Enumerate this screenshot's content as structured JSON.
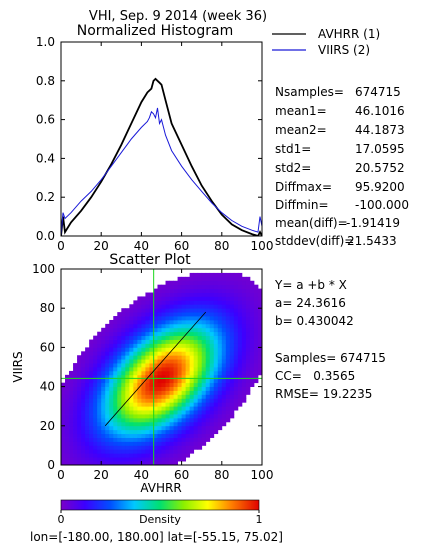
{
  "title": "VHI,  Sep. 9 2014 (week 36)",
  "colors": {
    "series1": "#000000",
    "series2": "#1a1ad8",
    "fit_line": "#000000",
    "mean_line": "#1ad81a"
  },
  "stats": {
    "rows": [
      {
        "label": "Nsamples=",
        "value": "674715"
      },
      {
        "label": "mean1=",
        "value": "46.1016"
      },
      {
        "label": "mean2=",
        "value": "44.1873"
      },
      {
        "label": "std1=",
        "value": "17.0595"
      },
      {
        "label": "std2=",
        "value": "20.5752"
      },
      {
        "label": "Diffmax=",
        "value": "95.9200"
      },
      {
        "label": "Diffmin=",
        "value": "-100.000"
      },
      {
        "label": "mean(diff)=",
        "value": "-1.91419"
      },
      {
        "label": "stddev(diff)=",
        "value": "21.5433"
      }
    ]
  },
  "regression": {
    "equation": "Y= a +b * X",
    "a": "a= 24.3616",
    "b": "b= 0.430042",
    "samples": "Samples= 674715",
    "cc": "CC=   0.3565",
    "rmse": "RMSE= 19.2235"
  },
  "colorbar": {
    "min_label": "0",
    "max_label": "1",
    "title": "Density"
  },
  "footer": "lon=[-180.00, 180.00]  lat=[-55.15, 75.02]",
  "chart_data": [
    {
      "type": "line",
      "title": "Normalized Histogram",
      "xlim": [
        0,
        100
      ],
      "ylim": [
        0,
        1.0
      ],
      "x_ticks": [
        0,
        20,
        40,
        60,
        80,
        100
      ],
      "y_ticks": [
        0.0,
        0.2,
        0.4,
        0.6,
        0.8,
        1.0
      ],
      "y_tick_labels": [
        "0.0",
        "0.2",
        "0.4",
        "0.6",
        "0.8",
        "1.0"
      ],
      "series": [
        {
          "name": "AVHRR (1)",
          "color": "#000000",
          "x": [
            0,
            1,
            2,
            5,
            10,
            15,
            20,
            25,
            30,
            35,
            40,
            43,
            45,
            46,
            47,
            48,
            49,
            50,
            52,
            55,
            60,
            65,
            70,
            75,
            80,
            85,
            90,
            95,
            98,
            99,
            100
          ],
          "y": [
            0.0,
            0.1,
            0.02,
            0.07,
            0.13,
            0.2,
            0.28,
            0.37,
            0.47,
            0.58,
            0.69,
            0.74,
            0.76,
            0.8,
            0.81,
            0.8,
            0.79,
            0.78,
            0.7,
            0.58,
            0.47,
            0.36,
            0.26,
            0.18,
            0.11,
            0.06,
            0.03,
            0.01,
            0.0,
            0.02,
            0.0
          ]
        },
        {
          "name": "VIIRS (2)",
          "color": "#1a1ad8",
          "x": [
            0,
            1,
            2,
            5,
            10,
            15,
            20,
            25,
            30,
            35,
            40,
            43,
            44,
            45,
            46,
            47,
            48,
            49,
            50,
            52,
            55,
            60,
            65,
            70,
            75,
            80,
            85,
            90,
            95,
            98,
            99,
            100
          ],
          "y": [
            0.0,
            0.12,
            0.09,
            0.12,
            0.18,
            0.23,
            0.29,
            0.36,
            0.43,
            0.5,
            0.56,
            0.59,
            0.61,
            0.64,
            0.63,
            0.61,
            0.66,
            0.58,
            0.6,
            0.52,
            0.44,
            0.36,
            0.29,
            0.23,
            0.17,
            0.12,
            0.08,
            0.05,
            0.03,
            0.02,
            0.1,
            0.05
          ]
        }
      ]
    },
    {
      "type": "heatmap",
      "title": "Scatter Plot",
      "xlabel": "AVHRR",
      "ylabel": "VIIRS",
      "xlim": [
        0,
        100
      ],
      "ylim": [
        0,
        100
      ],
      "x_ticks": [
        0,
        20,
        40,
        60,
        80,
        100
      ],
      "y_ticks": [
        0,
        20,
        40,
        60,
        80,
        100
      ],
      "density_center": [
        50,
        44
      ],
      "mean_x": 46.1016,
      "mean_y": 44.1873,
      "fit": {
        "intercept": 24.3616,
        "slope": 0.430042
      }
    }
  ]
}
